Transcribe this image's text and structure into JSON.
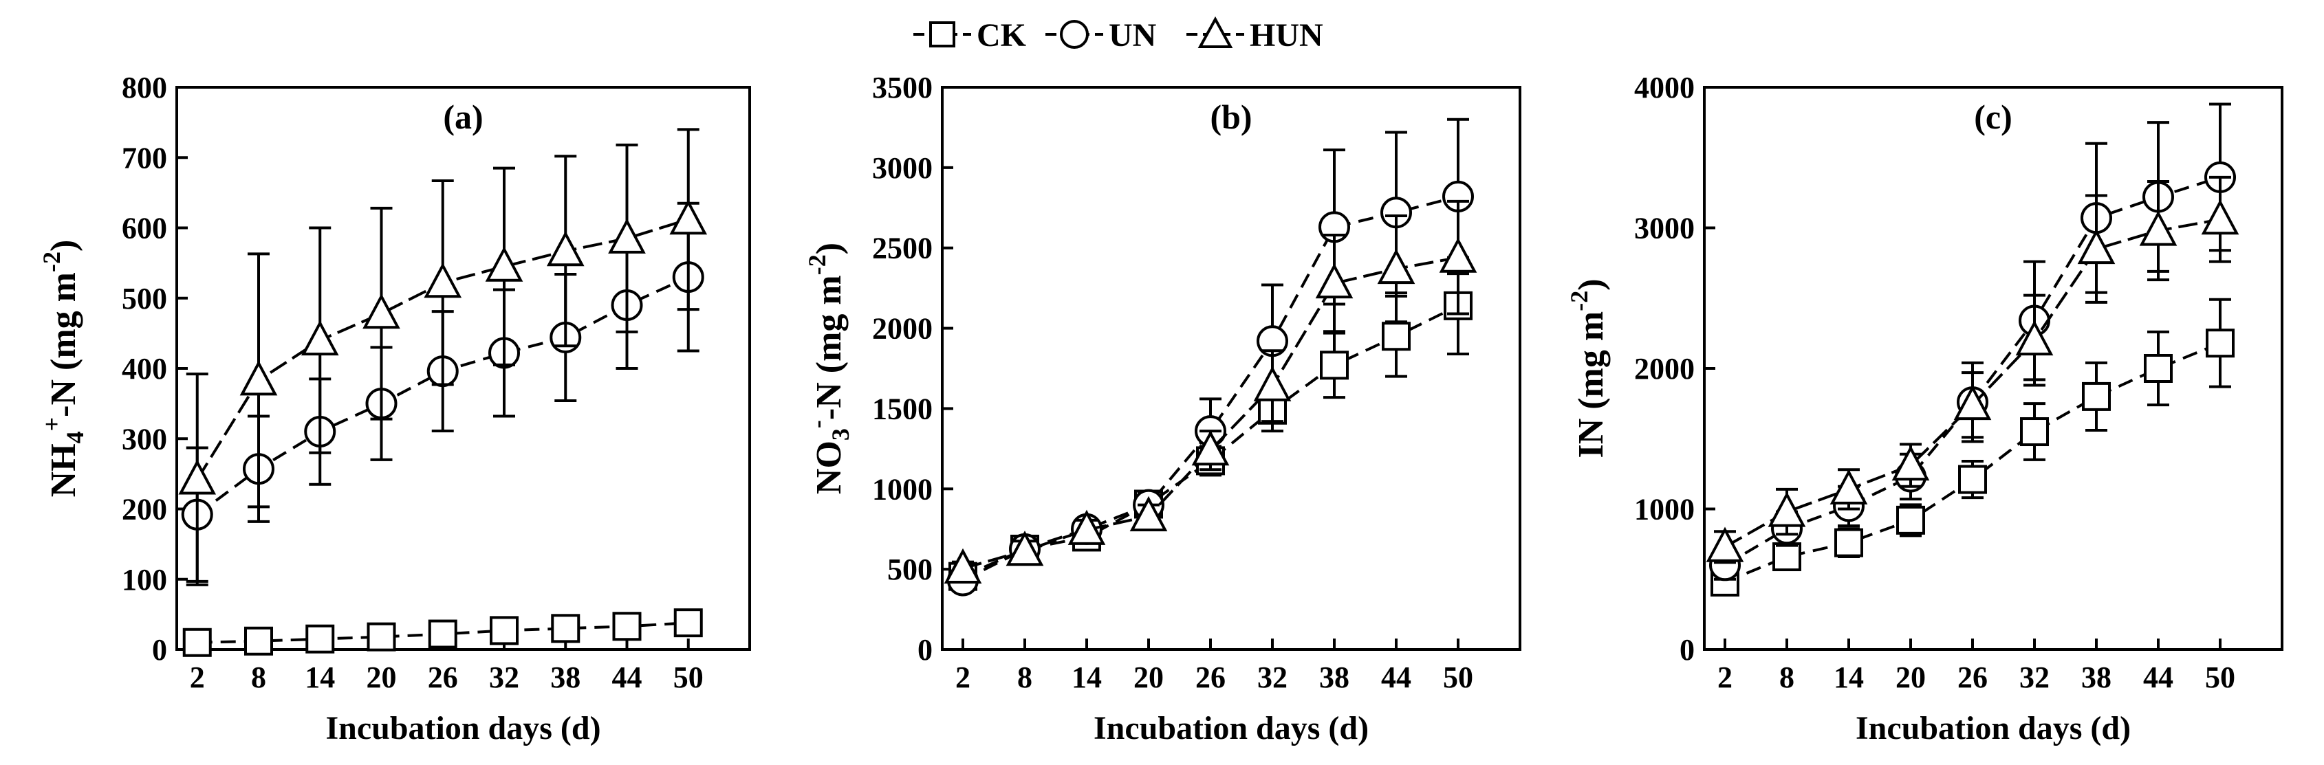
{
  "legend": {
    "entries": [
      {
        "label": "CK",
        "marker": "square"
      },
      {
        "label": "UN",
        "marker": "circle"
      },
      {
        "label": "HUN",
        "marker": "triangle"
      }
    ]
  },
  "chart_data": [
    {
      "type": "line",
      "panel_label": "(a)",
      "xlabel": "Incubation days (d)",
      "ylabel_parts": [
        "NH",
        "4",
        "+",
        "-N (mg m",
        "-2",
        ")"
      ],
      "x": [
        2,
        8,
        14,
        20,
        26,
        32,
        38,
        44,
        50
      ],
      "xticks": [
        2,
        8,
        14,
        20,
        26,
        32,
        38,
        44,
        50
      ],
      "ylim": [
        0,
        800
      ],
      "yticks": [
        0,
        100,
        200,
        300,
        400,
        500,
        600,
        700,
        800
      ],
      "series": [
        {
          "name": "CK",
          "marker": "square",
          "values": [
            10,
            12,
            15,
            18,
            22,
            27,
            30,
            33,
            38
          ],
          "errors": [
            4,
            4,
            5,
            5,
            6,
            6,
            7,
            7,
            8
          ]
        },
        {
          "name": "UN",
          "marker": "circle",
          "values": [
            192,
            257,
            310,
            350,
            396,
            422,
            444,
            490,
            530
          ],
          "errors": [
            95,
            75,
            75,
            80,
            85,
            90,
            90,
            90,
            105
          ]
        },
        {
          "name": "HUN",
          "marker": "triangle",
          "values": [
            242,
            383,
            440,
            478,
            522,
            545,
            567,
            585,
            612
          ],
          "errors": [
            150,
            180,
            160,
            150,
            145,
            140,
            135,
            133,
            128
          ]
        }
      ]
    },
    {
      "type": "line",
      "panel_label": "(b)",
      "xlabel": "Incubation days (d)",
      "ylabel_parts": [
        "NO",
        "3",
        "-",
        "-N (mg m",
        "-2",
        ")"
      ],
      "x": [
        2,
        8,
        14,
        20,
        26,
        32,
        38,
        44,
        50
      ],
      "xticks": [
        2,
        8,
        14,
        20,
        26,
        32,
        38,
        44,
        50
      ],
      "ylim": [
        0,
        3500
      ],
      "yticks": [
        0,
        500,
        1000,
        1500,
        2000,
        2500,
        3000,
        3500
      ],
      "series": [
        {
          "name": "CK",
          "marker": "square",
          "values": [
            455,
            625,
            700,
            905,
            1175,
            1490,
            1770,
            1950,
            2140
          ],
          "errors": [
            40,
            60,
            60,
            70,
            90,
            130,
            200,
            250,
            300
          ]
        },
        {
          "name": "UN",
          "marker": "circle",
          "values": [
            430,
            625,
            750,
            900,
            1360,
            1920,
            2630,
            2720,
            2820
          ],
          "errors": [
            40,
            60,
            60,
            70,
            200,
            350,
            480,
            500,
            480
          ]
        },
        {
          "name": "HUN",
          "marker": "triangle",
          "values": [
            505,
            615,
            745,
            830,
            1240,
            1640,
            2280,
            2370,
            2440
          ],
          "errors": [
            40,
            60,
            60,
            70,
            120,
            220,
            300,
            330,
            350
          ]
        }
      ]
    },
    {
      "type": "line",
      "panel_label": "(c)",
      "xlabel": "Incubation days (d)",
      "ylabel_parts": [
        "IN (mg m",
        "-2",
        ")"
      ],
      "x": [
        2,
        8,
        14,
        20,
        26,
        32,
        38,
        44,
        50
      ],
      "xticks": [
        2,
        8,
        14,
        20,
        26,
        32,
        38,
        44,
        50
      ],
      "ylim": [
        0,
        4000
      ],
      "yticks": [
        0,
        1000,
        2000,
        3000,
        4000
      ],
      "series": [
        {
          "name": "CK",
          "marker": "square",
          "values": [
            480,
            660,
            760,
            920,
            1210,
            1550,
            1800,
            2000,
            2180
          ],
          "errors": [
            70,
            90,
            100,
            110,
            130,
            200,
            240,
            260,
            310
          ]
        },
        {
          "name": "UN",
          "marker": "circle",
          "values": [
            600,
            860,
            1020,
            1230,
            1760,
            2340,
            3070,
            3220,
            3360
          ],
          "errors": [
            100,
            120,
            140,
            160,
            280,
            420,
            530,
            530,
            520
          ]
        },
        {
          "name": "HUN",
          "marker": "triangle",
          "values": [
            730,
            980,
            1140,
            1310,
            1740,
            2200,
            2850,
            2980,
            3060
          ],
          "errors": [
            110,
            160,
            140,
            150,
            230,
            320,
            380,
            350,
            300
          ]
        }
      ]
    }
  ]
}
